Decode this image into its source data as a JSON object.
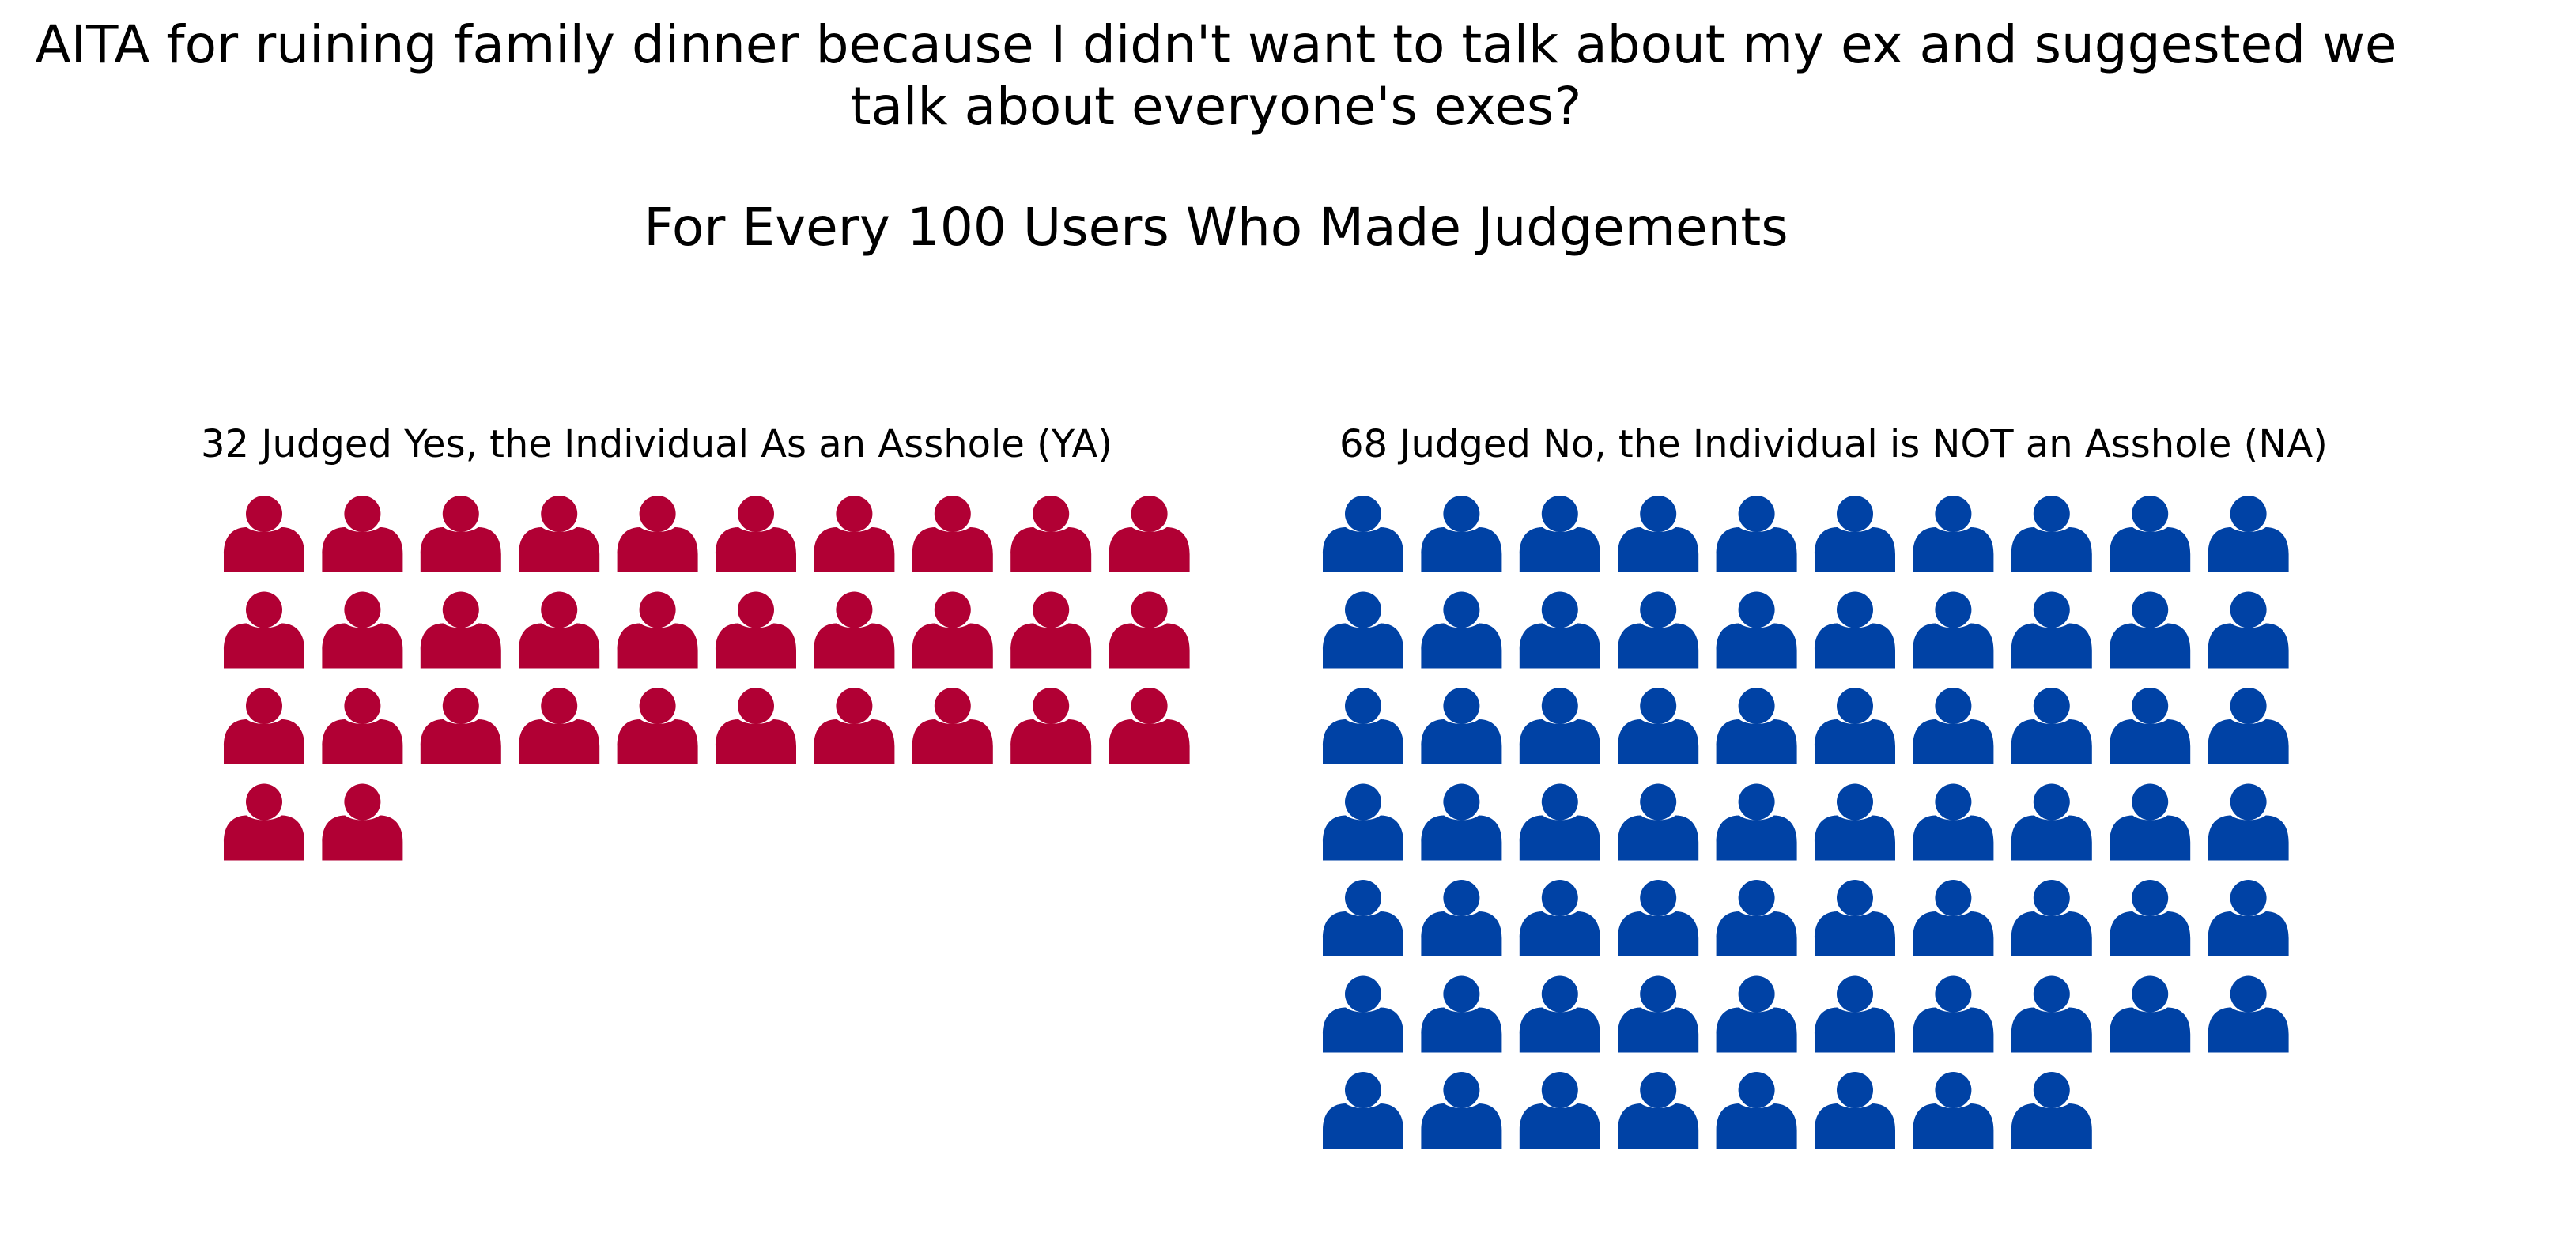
{
  "title_lines": [
    "AITA for ruining family dinner because I didn't want to talk about my ex and suggested we",
    "talk about everyone's exes?"
  ],
  "subtitle": "For Every 100 Users Who Made Judgements",
  "chart_data": {
    "type": "pictogram",
    "total": 100,
    "icon": "person-icon",
    "columns": 10,
    "groups": [
      {
        "label": "32 Judged Yes, the Individual As an Asshole (YA)",
        "value": 32,
        "color": "#b10034"
      },
      {
        "label": "68 Judged No, the Individual is NOT an Asshole (NA)",
        "value": 68,
        "color": "#0042a5"
      }
    ]
  }
}
